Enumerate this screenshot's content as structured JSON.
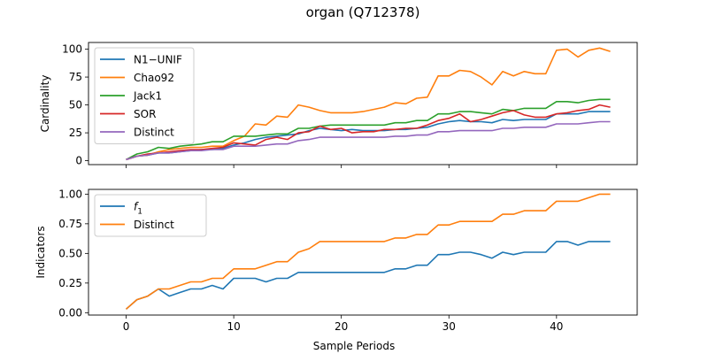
{
  "figure": {
    "title": "organ (Q712378)"
  },
  "chart_data": [
    {
      "type": "line",
      "ylabel": "Cardinality",
      "xlabel": "",
      "xlim": [
        -3.5,
        47.5
      ],
      "ylim": [
        -3.5,
        106
      ],
      "xticks": [
        0,
        10,
        20,
        30,
        40
      ],
      "xtick_labels_visible": false,
      "yticks": [
        0,
        25,
        50,
        75,
        100
      ],
      "ytick_labels": [
        "0",
        "25",
        "50",
        "75",
        "100"
      ],
      "legend": "top-left",
      "series": [
        {
          "name": "N1−UNIF",
          "color": "#1f77b4",
          "values": [
            1,
            4,
            5,
            7,
            7,
            8,
            9,
            10,
            10,
            11,
            14,
            16,
            19,
            21,
            22,
            23,
            24,
            27,
            29,
            28,
            27,
            28,
            27,
            27,
            27,
            28,
            28,
            29,
            30,
            33,
            35,
            36,
            35,
            35,
            34,
            37,
            36,
            37,
            37,
            37,
            42,
            42,
            42,
            44,
            44,
            44
          ]
        },
        {
          "name": "Chao92",
          "color": "#ff7f0e",
          "values": [
            1,
            4,
            5,
            8,
            10,
            11,
            12,
            12,
            13,
            13,
            18,
            22,
            33,
            32,
            40,
            39,
            50,
            48,
            45,
            43,
            43,
            43,
            44,
            46,
            48,
            52,
            51,
            56,
            57,
            76,
            76,
            81,
            80,
            75,
            68,
            80,
            76,
            80,
            78,
            78,
            99,
            100,
            93,
            99,
            101,
            98
          ]
        },
        {
          "name": "Jack1",
          "color": "#2ca02c",
          "values": [
            1,
            6,
            8,
            12,
            11,
            13,
            14,
            15,
            17,
            17,
            22,
            22,
            22,
            23,
            24,
            24,
            29,
            29,
            31,
            32,
            32,
            32,
            32,
            32,
            32,
            34,
            34,
            36,
            36,
            42,
            42,
            44,
            44,
            43,
            42,
            46,
            45,
            47,
            47,
            47,
            53,
            53,
            52,
            54,
            55,
            55
          ]
        },
        {
          "name": "SOR",
          "color": "#d62728",
          "values": [
            1,
            4,
            6,
            7,
            8,
            9,
            10,
            10,
            11,
            12,
            16,
            15,
            14,
            19,
            21,
            19,
            25,
            26,
            31,
            28,
            29,
            25,
            26,
            26,
            28,
            28,
            29,
            29,
            32,
            36,
            38,
            42,
            35,
            37,
            40,
            43,
            45,
            41,
            39,
            39,
            42,
            43,
            45,
            46,
            50,
            48
          ]
        },
        {
          "name": "Distinct",
          "color": "#9467bd",
          "values": [
            1,
            4,
            5,
            7,
            7,
            8,
            9,
            9,
            10,
            10,
            13,
            13,
            13,
            14,
            15,
            15,
            18,
            19,
            21,
            21,
            21,
            21,
            21,
            21,
            21,
            22,
            22,
            23,
            23,
            26,
            26,
            27,
            27,
            27,
            27,
            29,
            29,
            30,
            30,
            30,
            33,
            33,
            33,
            34,
            35,
            35
          ]
        }
      ]
    },
    {
      "type": "line",
      "ylabel": "Indicators",
      "xlabel": "Sample Periods",
      "xlim": [
        -3.5,
        47.5
      ],
      "ylim": [
        -0.02,
        1.04
      ],
      "xticks": [
        0,
        10,
        20,
        30,
        40
      ],
      "xtick_labels": [
        "0",
        "10",
        "20",
        "30",
        "40"
      ],
      "xtick_labels_visible": true,
      "yticks": [
        0,
        0.25,
        0.5,
        0.75,
        1.0
      ],
      "ytick_labels": [
        "0.00",
        "0.25",
        "0.50",
        "0.75",
        "1.00"
      ],
      "legend": "top-left",
      "series": [
        {
          "name": "f",
          "name_subscript": "1",
          "color": "#1f77b4",
          "values": [
            0.03,
            0.11,
            0.14,
            0.2,
            0.14,
            0.17,
            0.2,
            0.2,
            0.23,
            0.2,
            0.29,
            0.29,
            0.29,
            0.26,
            0.29,
            0.29,
            0.34,
            0.34,
            0.34,
            0.34,
            0.34,
            0.34,
            0.34,
            0.34,
            0.34,
            0.37,
            0.37,
            0.4,
            0.4,
            0.49,
            0.49,
            0.51,
            0.51,
            0.49,
            0.46,
            0.51,
            0.49,
            0.51,
            0.51,
            0.51,
            0.6,
            0.6,
            0.57,
            0.6,
            0.6,
            0.6
          ]
        },
        {
          "name": "Distinct",
          "color": "#ff7f0e",
          "values": [
            0.03,
            0.11,
            0.14,
            0.2,
            0.2,
            0.23,
            0.26,
            0.26,
            0.29,
            0.29,
            0.37,
            0.37,
            0.37,
            0.4,
            0.43,
            0.43,
            0.51,
            0.54,
            0.6,
            0.6,
            0.6,
            0.6,
            0.6,
            0.6,
            0.6,
            0.63,
            0.63,
            0.66,
            0.66,
            0.74,
            0.74,
            0.77,
            0.77,
            0.77,
            0.77,
            0.83,
            0.83,
            0.86,
            0.86,
            0.86,
            0.94,
            0.94,
            0.94,
            0.97,
            1.0,
            1.0
          ]
        }
      ]
    }
  ]
}
